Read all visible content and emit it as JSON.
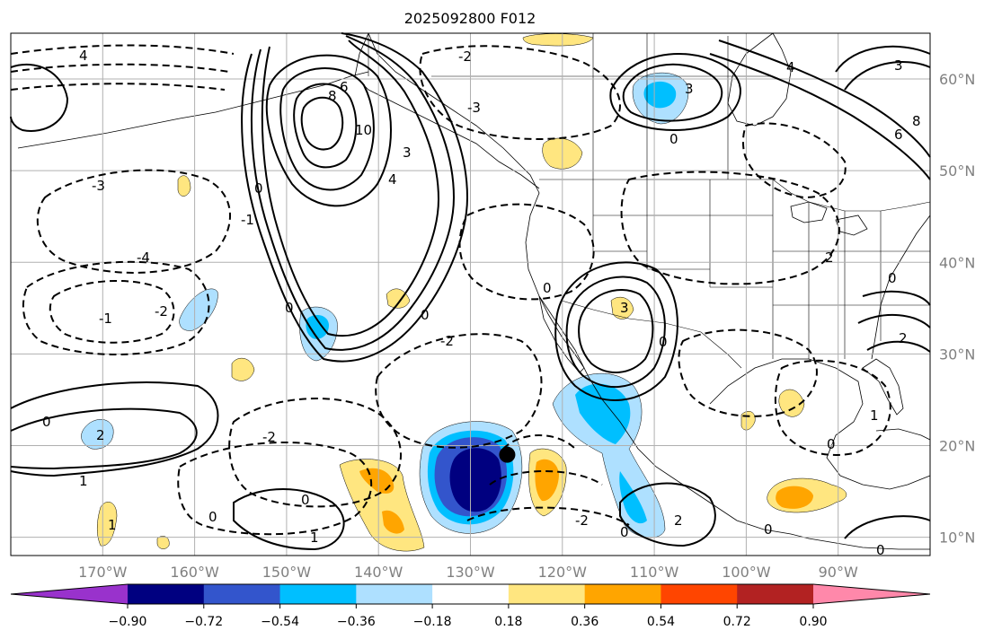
{
  "title": "2025092800 F012",
  "map": {
    "lon_range": [
      -180,
      -80
    ],
    "lat_range": [
      8,
      65
    ],
    "lon_gridlines": [
      -170,
      -160,
      -150,
      -140,
      -130,
      -120,
      -110,
      -100,
      -90
    ],
    "lat_gridlines": [
      10,
      20,
      30,
      40,
      50,
      60
    ],
    "lon_tick_labels": [
      "170°W",
      "160°W",
      "150°W",
      "140°W",
      "130°W",
      "120°W",
      "110°W",
      "100°W",
      "90°W"
    ],
    "lat_tick_labels": [
      "10°N",
      "20°N",
      "30°N",
      "40°N",
      "50°N",
      "60°N"
    ],
    "grid": true,
    "marker": {
      "lon": -126,
      "lat": 19,
      "color": "#000000"
    },
    "contour_labels": [
      "4",
      "3",
      "2",
      "1",
      "0",
      "-1",
      "-2",
      "-3",
      "-4",
      "6",
      "8",
      "10"
    ]
  },
  "colorbar": {
    "ticks": [
      "−0.90",
      "−0.72",
      "−0.54",
      "−0.36",
      "−0.18",
      "0.18",
      "0.36",
      "0.54",
      "0.72",
      "0.90"
    ],
    "colors": [
      "#9932cc",
      "#000080",
      "#3355cc",
      "#00bfff",
      "#aee0ff",
      "#ffffff",
      "#ffe680",
      "#ffa500",
      "#ff4500",
      "#b22222",
      "#ff88aa"
    ]
  },
  "shaded_features": [
    {
      "name": "strong-negative-anomaly",
      "colors": [
        "#aee0ff",
        "#00bfff",
        "#3355cc",
        "#000080"
      ]
    },
    {
      "name": "mexico-negative-anomaly",
      "colors": [
        "#aee0ff",
        "#00bfff"
      ]
    },
    {
      "name": "alaska-negative-anomaly",
      "colors": [
        "#aee0ff",
        "#00bfff"
      ]
    },
    {
      "name": "pacific-positive-anomaly",
      "colors": [
        "#ffe680",
        "#ffa500"
      ]
    },
    {
      "name": "gulf-positive-anomaly",
      "colors": [
        "#ffe680",
        "#ffa500"
      ]
    }
  ]
}
